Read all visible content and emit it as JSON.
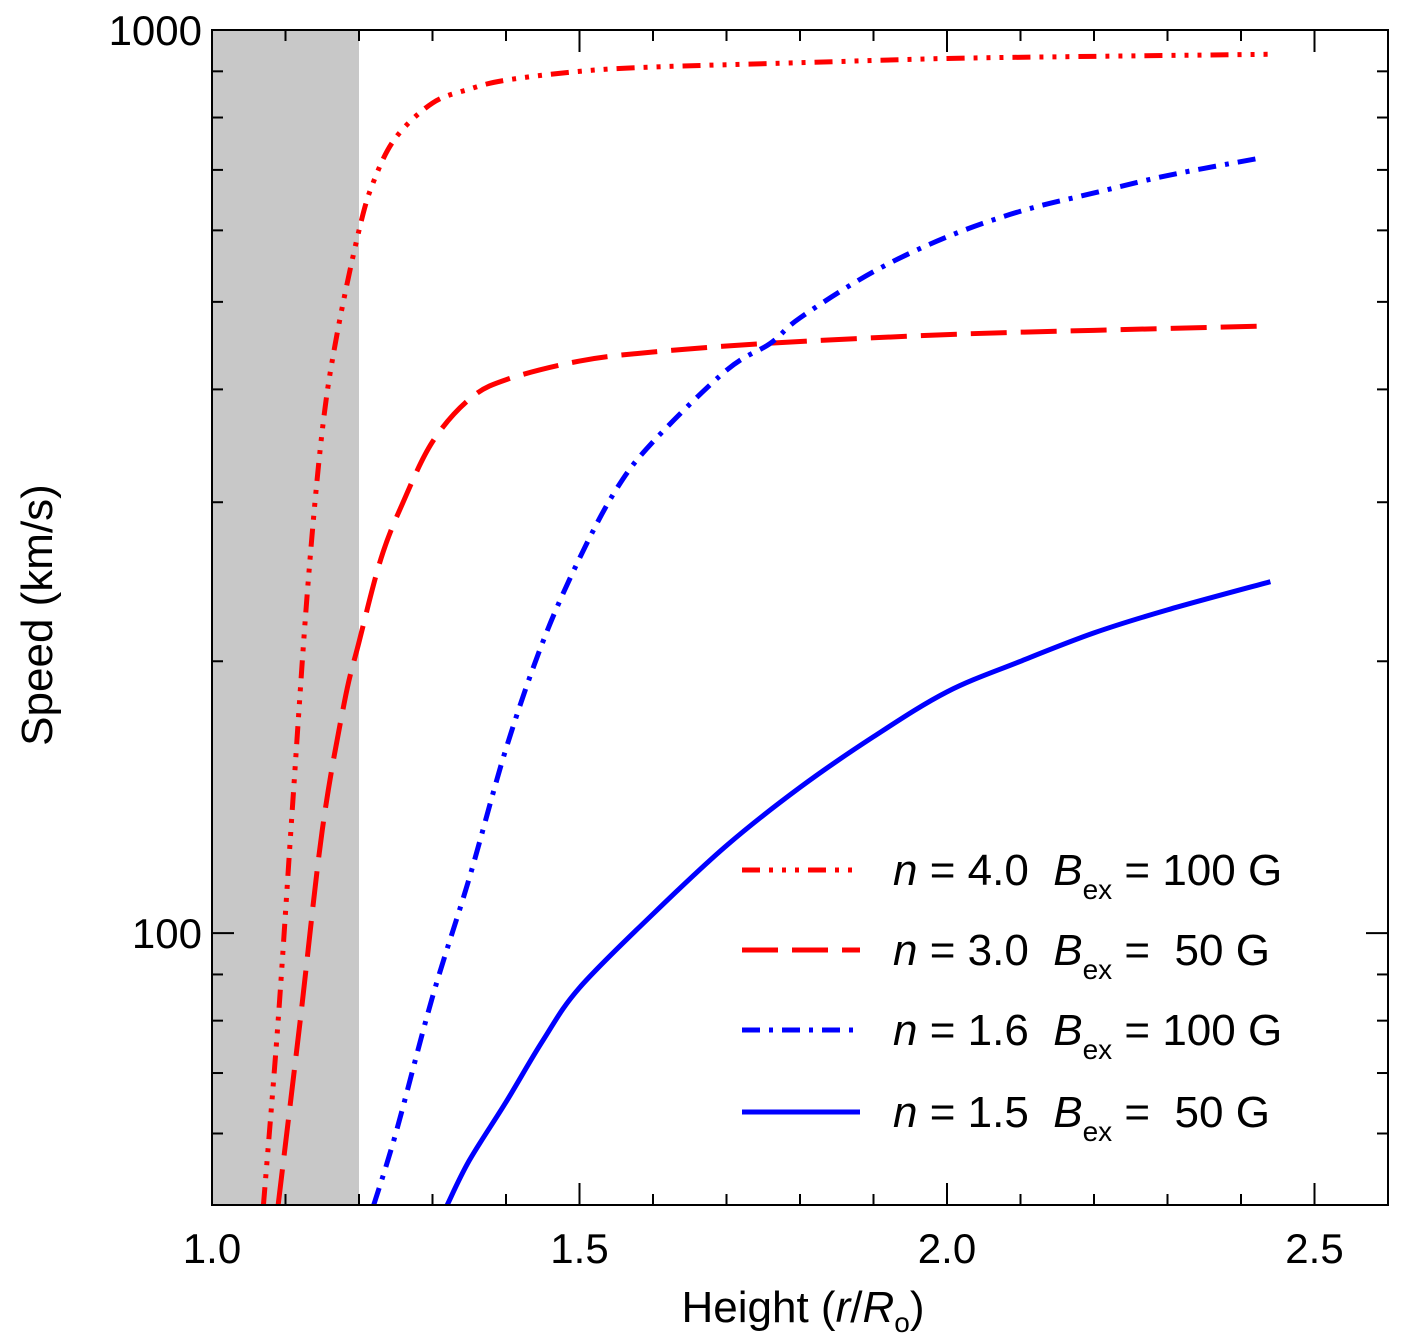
{
  "chart_data": {
    "type": "line",
    "xlabel": "Height (r/R",
    "xlabel_parts": {
      "prefix": "Height (",
      "var_r": "r",
      "slash": "/",
      "var_R": "R",
      "sub_o": "o",
      "suffix": ")"
    },
    "ylabel": "Speed (km/s)",
    "xlim": [
      1.0,
      2.6
    ],
    "ylim": [
      50,
      1000
    ],
    "yscale": "log",
    "x_ticks": [
      1.0,
      1.5,
      2.0,
      2.5
    ],
    "x_tick_labels": [
      "1.0",
      "1.5",
      "2.0",
      "2.5"
    ],
    "y_ticks": [
      100,
      1000
    ],
    "y_tick_labels": [
      "100",
      "1000"
    ],
    "shaded_region": {
      "x": [
        1.0,
        1.2
      ],
      "color": "#c8c8c8"
    },
    "grid": false,
    "legend_position": "bottom-right",
    "series": [
      {
        "legend": {
          "n_sym": "n",
          "n_text": " = 4.0  ",
          "b_sym": "B",
          "b_sub": "ex",
          "b_text": " = 100 G"
        },
        "color": "#ff0000",
        "dash": "dash-dot-dot-dot",
        "x": [
          1.07,
          1.09,
          1.11,
          1.13,
          1.15,
          1.17,
          1.2,
          1.22,
          1.25,
          1.3,
          1.35,
          1.4,
          1.5,
          1.6,
          1.8,
          2.0,
          2.2,
          2.44
        ],
        "y": [
          50,
          80,
          140,
          240,
          360,
          460,
          600,
          680,
          760,
          830,
          860,
          880,
          900,
          910,
          920,
          930,
          935,
          940
        ]
      },
      {
        "legend": {
          "n_sym": "n",
          "n_text": " = 3.0  ",
          "b_sym": "B",
          "b_sub": "ex",
          "b_text": " =  50 G"
        },
        "color": "#ff0000",
        "dash": "long-dash",
        "x": [
          1.09,
          1.12,
          1.15,
          1.18,
          1.2,
          1.23,
          1.26,
          1.3,
          1.35,
          1.4,
          1.5,
          1.6,
          1.76,
          2.0,
          2.2,
          2.43
        ],
        "y": [
          50,
          80,
          130,
          180,
          210,
          260,
          300,
          350,
          390,
          410,
          430,
          440,
          450,
          460,
          465,
          470
        ]
      },
      {
        "legend": {
          "n_sym": "n",
          "n_text": " = 1.6  ",
          "b_sym": "B",
          "b_sub": "ex",
          "b_text": " = 100 G"
        },
        "color": "#0000ff",
        "dash": "dash-dot",
        "x": [
          1.22,
          1.25,
          1.3,
          1.35,
          1.4,
          1.45,
          1.5,
          1.55,
          1.6,
          1.7,
          1.76,
          1.8,
          1.9,
          2.0,
          2.1,
          2.2,
          2.3,
          2.42
        ],
        "y": [
          50,
          60,
          85,
          115,
          160,
          210,
          260,
          310,
          350,
          420,
          450,
          480,
          540,
          590,
          630,
          660,
          690,
          720
        ]
      },
      {
        "legend": {
          "n_sym": "n",
          "n_text": " = 1.5  ",
          "b_sym": "B",
          "b_sub": "ex",
          "b_text": " =  50 G"
        },
        "color": "#0000ff",
        "dash": "solid",
        "x": [
          1.32,
          1.35,
          1.4,
          1.45,
          1.5,
          1.6,
          1.7,
          1.8,
          1.9,
          2.0,
          2.1,
          2.2,
          2.3,
          2.44
        ],
        "y": [
          50,
          56,
          65,
          76,
          87,
          105,
          125,
          145,
          165,
          185,
          200,
          215,
          228,
          245
        ]
      }
    ]
  }
}
